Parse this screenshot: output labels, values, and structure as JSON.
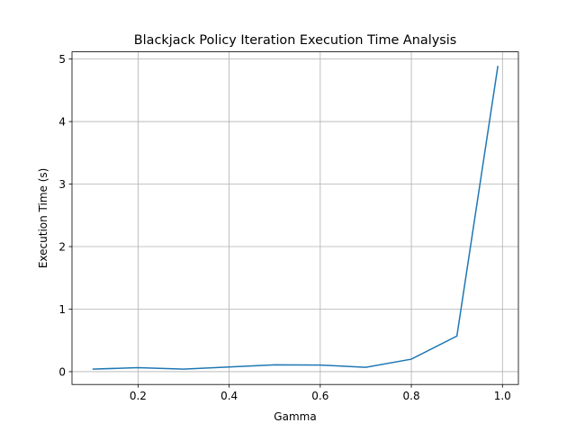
{
  "chart_data": {
    "type": "line",
    "title": "Blackjack Policy Iteration Execution Time Analysis",
    "xlabel": "Gamma",
    "ylabel": "Execution Time (s)",
    "xlim": [
      0.055,
      1.035
    ],
    "ylim": [
      -0.205,
      5.115
    ],
    "xticks": [
      0.2,
      0.4,
      0.6,
      0.8,
      1.0
    ],
    "xtick_labels": [
      "0.2",
      "0.4",
      "0.6",
      "0.8",
      "1.0"
    ],
    "yticks": [
      0,
      1,
      2,
      3,
      4,
      5
    ],
    "ytick_labels": [
      "0",
      "1",
      "2",
      "3",
      "4",
      "5"
    ],
    "grid": true,
    "line_color": "#1f77b4",
    "series": [
      {
        "x": [
          0.1,
          0.2,
          0.3,
          0.4,
          0.5,
          0.6,
          0.7,
          0.8,
          0.9,
          0.99
        ],
        "values": [
          0.04,
          0.065,
          0.04,
          0.075,
          0.11,
          0.105,
          0.07,
          0.2,
          0.57,
          4.89
        ]
      }
    ]
  }
}
